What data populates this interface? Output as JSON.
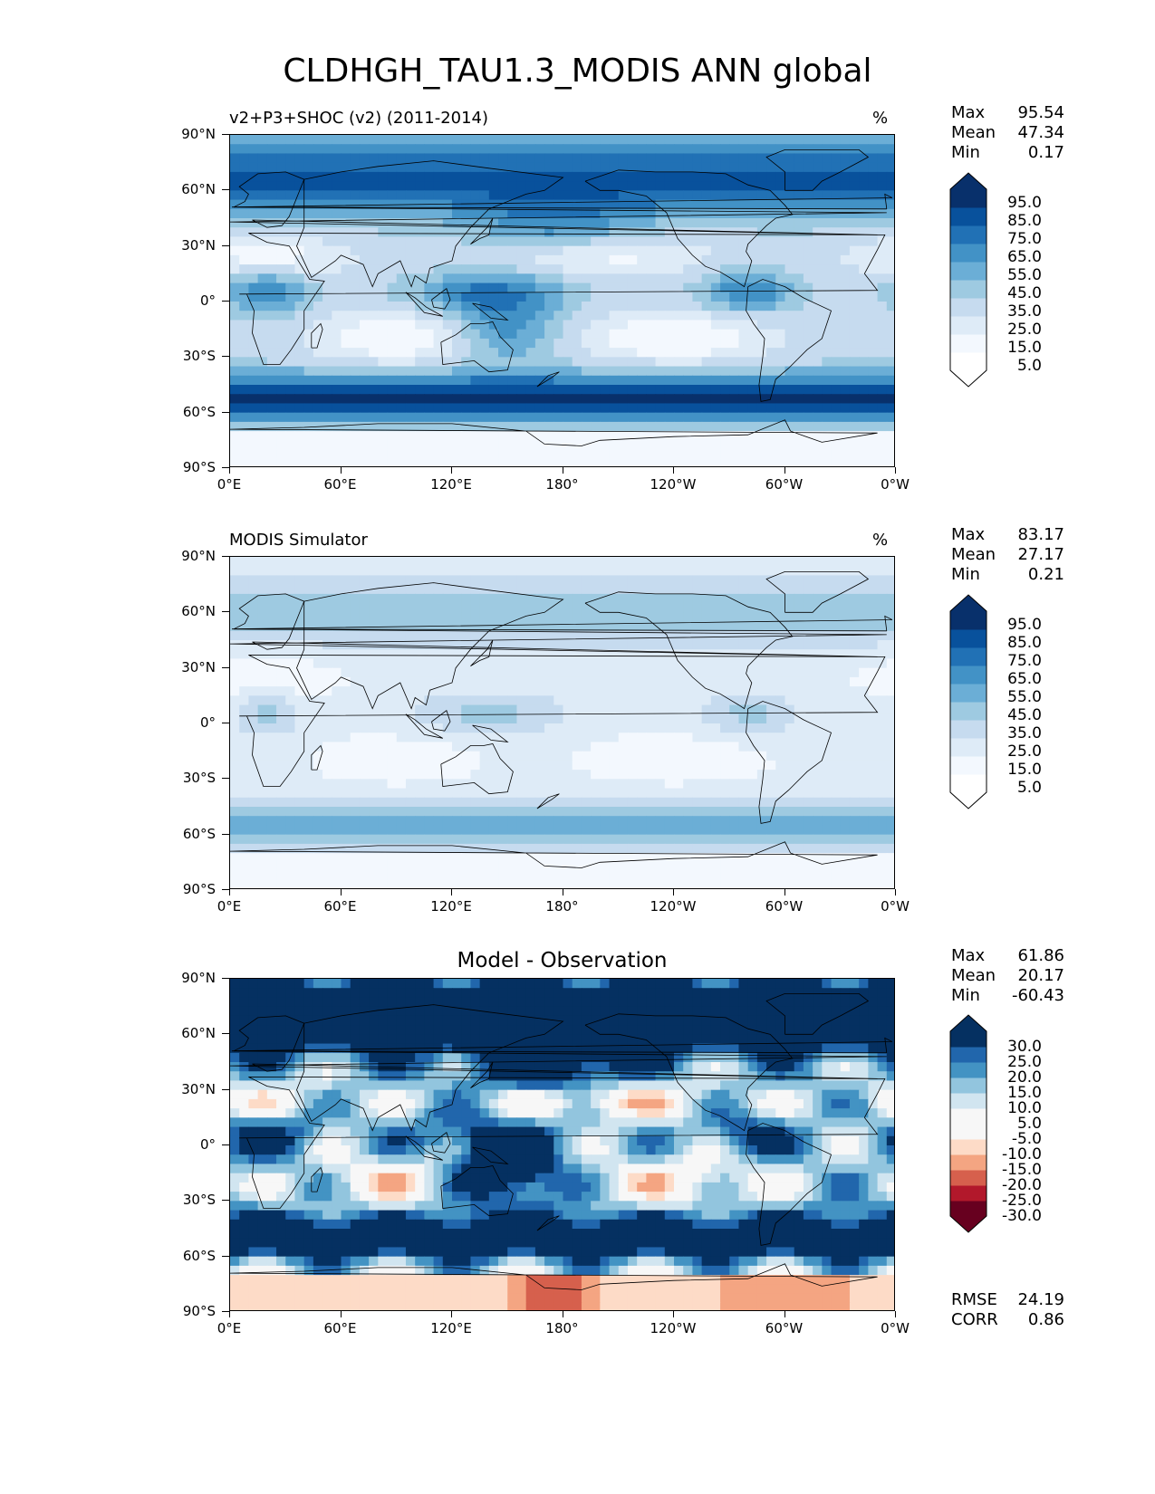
{
  "title": "CLDHGH_TAU1.3_MODIS ANN global",
  "lat_labels": [
    "90°N",
    "60°N",
    "30°N",
    "0°",
    "30°S",
    "60°S",
    "90°S"
  ],
  "lon_labels": [
    "0°E",
    "60°E",
    "120°E",
    "180°",
    "120°W",
    "60°W",
    "0°W"
  ],
  "panels": [
    {
      "title_left": "v2+P3+SHOC (v2) (2011-2014)",
      "title_right": "%",
      "stats": [
        {
          "label": "Max",
          "value": "95.54"
        },
        {
          "label": "Mean",
          "value": "47.34"
        },
        {
          "label": "Min",
          "value": "0.17"
        }
      ],
      "colorbar_labels": [
        "95.0",
        "85.0",
        "75.0",
        "65.0",
        "55.0",
        "45.0",
        "35.0",
        "25.0",
        "15.0",
        "5.0"
      ],
      "colormap": "blues",
      "field": "model"
    },
    {
      "title_left": "MODIS Simulator",
      "title_right": "%",
      "stats": [
        {
          "label": "Max",
          "value": "83.17"
        },
        {
          "label": "Mean",
          "value": "27.17"
        },
        {
          "label": "Min",
          "value": "0.21"
        }
      ],
      "colorbar_labels": [
        "95.0",
        "85.0",
        "75.0",
        "65.0",
        "55.0",
        "45.0",
        "35.0",
        "25.0",
        "15.0",
        "5.0"
      ],
      "colormap": "blues",
      "field": "obs"
    },
    {
      "title_center": "Model - Observation",
      "stats": [
        {
          "label": "Max",
          "value": "61.86"
        },
        {
          "label": "Mean",
          "value": "20.17"
        },
        {
          "label": "Min",
          "value": "-60.43"
        }
      ],
      "colorbar_labels": [
        "30.0",
        "25.0",
        "20.0",
        "15.0",
        "10.0",
        "5.0",
        "-5.0",
        "-10.0",
        "-15.0",
        "-20.0",
        "-25.0",
        "-30.0"
      ],
      "colormap": "rdbu",
      "field": "diff",
      "metrics": [
        {
          "label": "RMSE",
          "value": "24.19"
        },
        {
          "label": "CORR",
          "value": "0.86"
        }
      ]
    }
  ],
  "colors": {
    "blues": [
      "#ffffff",
      "#f3f8fe",
      "#deebf7",
      "#c6dbef",
      "#9ecae1",
      "#6baed6",
      "#4292c6",
      "#2171b5",
      "#08519c",
      "#08306b"
    ],
    "blues_extend_low": "#ffffff",
    "blues_extend_high": "#08306b",
    "rdbu": [
      "#053061",
      "#2166ac",
      "#4393c3",
      "#92c5de",
      "#d1e5f0",
      "#f7f7f7",
      "#f7f7f7",
      "#fddbc7",
      "#f4a582",
      "#d6604d",
      "#b2182b",
      "#67001f"
    ],
    "rdbu_extend_low": "#67001f",
    "rdbu_extend_high": "#053061",
    "coast": "#000000"
  }
}
